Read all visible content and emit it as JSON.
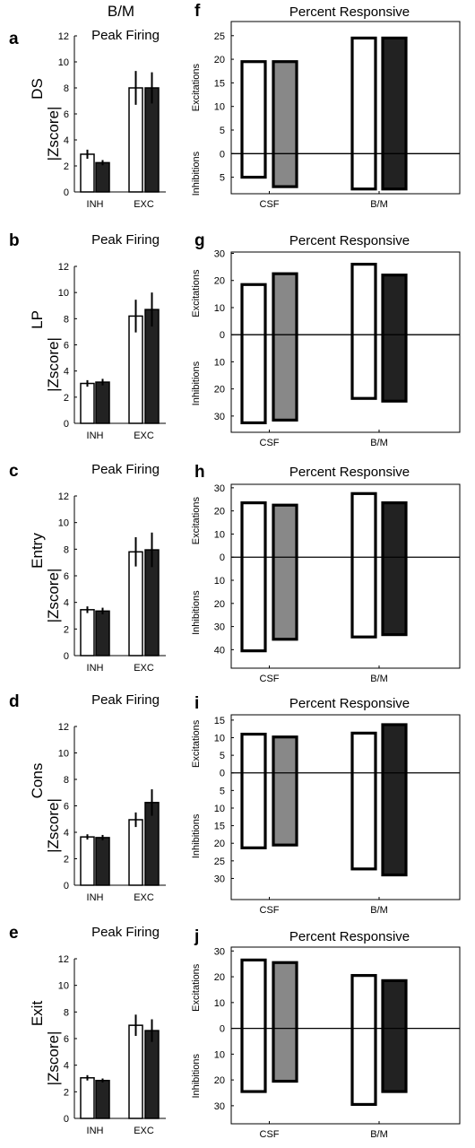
{
  "figure": {
    "header": "B/M"
  },
  "chart_data": [
    {
      "type": "bar",
      "letter": "a",
      "row_label": "DS",
      "title": "Peak Firing",
      "ylabel": "|Zscore|",
      "categories": [
        "INH",
        "EXC"
      ],
      "ylim": [
        0,
        12
      ],
      "yticks": [
        0,
        2,
        4,
        6,
        8,
        10,
        12
      ],
      "series": [
        {
          "values": [
            2.9,
            8.0
          ],
          "errors": [
            0.35,
            1.3
          ],
          "color": "#ffffff"
        },
        {
          "values": [
            2.25,
            8.0
          ],
          "errors": [
            0.2,
            1.2
          ],
          "color": "#222222"
        }
      ]
    },
    {
      "type": "bar",
      "letter": "b",
      "row_label": "LP",
      "title": "Peak Firing",
      "ylabel": "|Zscore|",
      "categories": [
        "INH",
        "EXC"
      ],
      "ylim": [
        0,
        12
      ],
      "yticks": [
        0,
        2,
        4,
        6,
        8,
        10,
        12
      ],
      "series": [
        {
          "values": [
            3.05,
            8.2
          ],
          "errors": [
            0.25,
            1.25
          ],
          "color": "#ffffff"
        },
        {
          "values": [
            3.15,
            8.7
          ],
          "errors": [
            0.25,
            1.3
          ],
          "color": "#222222"
        }
      ]
    },
    {
      "type": "bar",
      "letter": "c",
      "row_label": "Entry",
      "title": "Peak Firing",
      "ylabel": "|Zscore|",
      "categories": [
        "INH",
        "EXC"
      ],
      "ylim": [
        0,
        12
      ],
      "yticks": [
        0,
        2,
        4,
        6,
        8,
        10,
        12
      ],
      "series": [
        {
          "values": [
            3.45,
            7.8
          ],
          "errors": [
            0.25,
            1.1
          ],
          "color": "#ffffff"
        },
        {
          "values": [
            3.35,
            7.95
          ],
          "errors": [
            0.25,
            1.3
          ],
          "color": "#222222"
        }
      ]
    },
    {
      "type": "bar",
      "letter": "d",
      "row_label": "Cons",
      "title": "Peak Firing",
      "ylabel": "|Zscore|",
      "categories": [
        "INH",
        "EXC"
      ],
      "ylim": [
        0,
        12
      ],
      "yticks": [
        0,
        2,
        4,
        6,
        8,
        10,
        12
      ],
      "series": [
        {
          "values": [
            3.65,
            4.95
          ],
          "errors": [
            0.2,
            0.55
          ],
          "color": "#ffffff"
        },
        {
          "values": [
            3.6,
            6.25
          ],
          "errors": [
            0.2,
            1.0
          ],
          "color": "#222222"
        }
      ]
    },
    {
      "type": "bar",
      "letter": "e",
      "row_label": "Exit",
      "title": "Peak Firing",
      "ylabel": "|Zscore|",
      "categories": [
        "INH",
        "EXC"
      ],
      "ylim": [
        0,
        12
      ],
      "yticks": [
        0,
        2,
        4,
        6,
        8,
        10,
        12
      ],
      "series": [
        {
          "values": [
            3.05,
            7.0
          ],
          "errors": [
            0.2,
            0.8
          ],
          "color": "#ffffff"
        },
        {
          "values": [
            2.85,
            6.6
          ],
          "errors": [
            0.15,
            0.85
          ],
          "color": "#222222"
        }
      ]
    },
    {
      "type": "bar",
      "letter": "f",
      "title": "Percent  Responsive",
      "ylabel_upper": "Excitations",
      "ylabel_lower": "Inhibitions",
      "categories": [
        "CSF",
        "B/M"
      ],
      "ylim": [
        -8.5,
        28
      ],
      "ytick_values": [
        -5,
        0,
        5,
        10,
        15,
        20,
        25
      ],
      "ytick_labels": [
        "5",
        "0",
        "5",
        "10",
        "15",
        "20",
        "25"
      ],
      "series": [
        {
          "exc": [
            19.5,
            24.5
          ],
          "inh": [
            5,
            7.5
          ],
          "color": "#ffffff"
        },
        {
          "exc": [
            19.5,
            24.5
          ],
          "inh": [
            7,
            7.5
          ],
          "colors": [
            "#888888",
            "#222222"
          ]
        }
      ]
    },
    {
      "type": "bar",
      "letter": "g",
      "title": "Percent Responsive",
      "ylabel_upper": "Excitations",
      "ylabel_lower": "Inhibitions",
      "categories": [
        "CSF",
        "B/M"
      ],
      "ylim": [
        -36,
        30.5
      ],
      "ytick_values": [
        -30,
        -20,
        -10,
        0,
        10,
        20,
        30
      ],
      "ytick_labels": [
        "30",
        "20",
        "10",
        "0",
        "10",
        "20",
        "30"
      ],
      "series": [
        {
          "exc": [
            18.5,
            26
          ],
          "inh": [
            32.5,
            23.5
          ],
          "color": "#ffffff"
        },
        {
          "exc": [
            22.5,
            22
          ],
          "inh": [
            31.5,
            24.5
          ],
          "colors": [
            "#888888",
            "#222222"
          ]
        }
      ]
    },
    {
      "type": "bar",
      "letter": "h",
      "title": "Percent Responsive",
      "ylabel_upper": "Excitations",
      "ylabel_lower": "Inhibitions",
      "categories": [
        "CSF",
        "B/M"
      ],
      "ylim": [
        -48,
        31.5
      ],
      "ytick_values": [
        -40,
        -30,
        -20,
        -10,
        0,
        10,
        20,
        30
      ],
      "ytick_labels": [
        "40",
        "30",
        "20",
        "10",
        "0",
        "10",
        "20",
        "30"
      ],
      "series": [
        {
          "exc": [
            23.5,
            27.5
          ],
          "inh": [
            40.5,
            34.5
          ],
          "color": "#ffffff"
        },
        {
          "exc": [
            22.5,
            23.5
          ],
          "inh": [
            35.5,
            33.5
          ],
          "colors": [
            "#888888",
            "#222222"
          ]
        }
      ]
    },
    {
      "type": "bar",
      "letter": "i",
      "title": "Percent Responsive",
      "ylabel_upper": "Excitations",
      "ylabel_lower": "Inhibitions",
      "categories": [
        "CSF",
        "B/M"
      ],
      "ylim": [
        -36,
        16.5
      ],
      "ytick_values": [
        -30,
        -25,
        -20,
        -15,
        -10,
        -5,
        0,
        5,
        10,
        15
      ],
      "ytick_labels": [
        "30",
        "25",
        "20",
        "15",
        "10",
        "5",
        "0",
        "5",
        "10",
        "15"
      ],
      "series": [
        {
          "exc": [
            11,
            11.3
          ],
          "inh": [
            21.3,
            27.3
          ],
          "color": "#ffffff"
        },
        {
          "exc": [
            10.2,
            13.7
          ],
          "inh": [
            20.5,
            29
          ],
          "colors": [
            "#888888",
            "#222222"
          ]
        }
      ]
    },
    {
      "type": "bar",
      "letter": "j",
      "title": "Percent Responsive",
      "ylabel_upper": "Excitations",
      "ylabel_lower": "Inhibitions",
      "categories": [
        "CSF",
        "B/M"
      ],
      "ylim": [
        -37,
        31.5
      ],
      "ytick_values": [
        -30,
        -20,
        -10,
        0,
        10,
        20,
        30
      ],
      "ytick_labels": [
        "30",
        "20",
        "10",
        "0",
        "10",
        "20",
        "30"
      ],
      "series": [
        {
          "exc": [
            26.5,
            20.5
          ],
          "inh": [
            24.5,
            29.5
          ],
          "color": "#ffffff"
        },
        {
          "exc": [
            25.5,
            18.5
          ],
          "inh": [
            20.5,
            24.5
          ],
          "colors": [
            "#888888",
            "#222222"
          ]
        }
      ]
    }
  ]
}
